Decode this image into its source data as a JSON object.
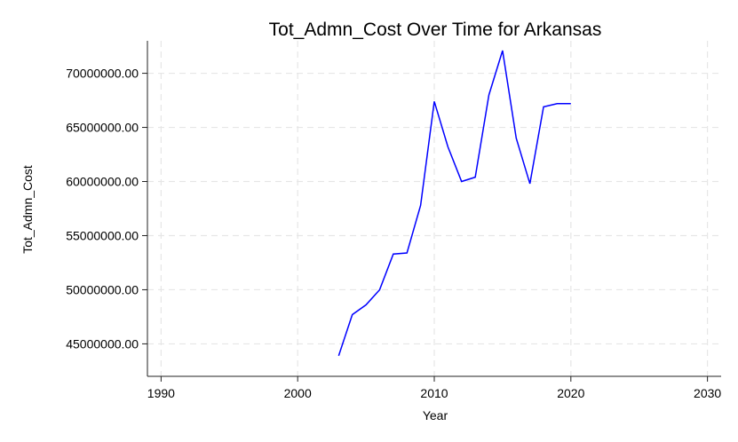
{
  "chart_data": {
    "type": "line",
    "title": "Tot_Admn_Cost Over Time for Arkansas",
    "xlabel": "Year",
    "ylabel": "Tot_Admn_Cost",
    "xlim": [
      1989,
      2031
    ],
    "ylim": [
      42000000,
      73000000
    ],
    "x_ticks": [
      1990,
      2000,
      2010,
      2020,
      2030
    ],
    "x_tick_labels": [
      "1990",
      "2000",
      "2010",
      "2020",
      "2030"
    ],
    "y_ticks": [
      45000000,
      50000000,
      55000000,
      60000000,
      65000000,
      70000000
    ],
    "y_tick_labels": [
      "45000000.00",
      "50000000.00",
      "55000000.00",
      "60000000.00",
      "65000000.00",
      "70000000.00"
    ],
    "grid": true,
    "series": [
      {
        "color": "#0000ff",
        "x": [
          2003,
          2004,
          2005,
          2006,
          2007,
          2008,
          2009,
          2010,
          2011,
          2012,
          2013,
          2014,
          2015,
          2016,
          2017,
          2018,
          2019,
          2020
        ],
        "y": [
          43900000,
          47700000,
          48600000,
          50000000,
          53300000,
          53400000,
          57800000,
          67400000,
          63200000,
          60000000,
          60400000,
          68000000,
          72100000,
          64000000,
          59800000,
          66900000,
          67200000,
          67200000
        ]
      }
    ]
  }
}
